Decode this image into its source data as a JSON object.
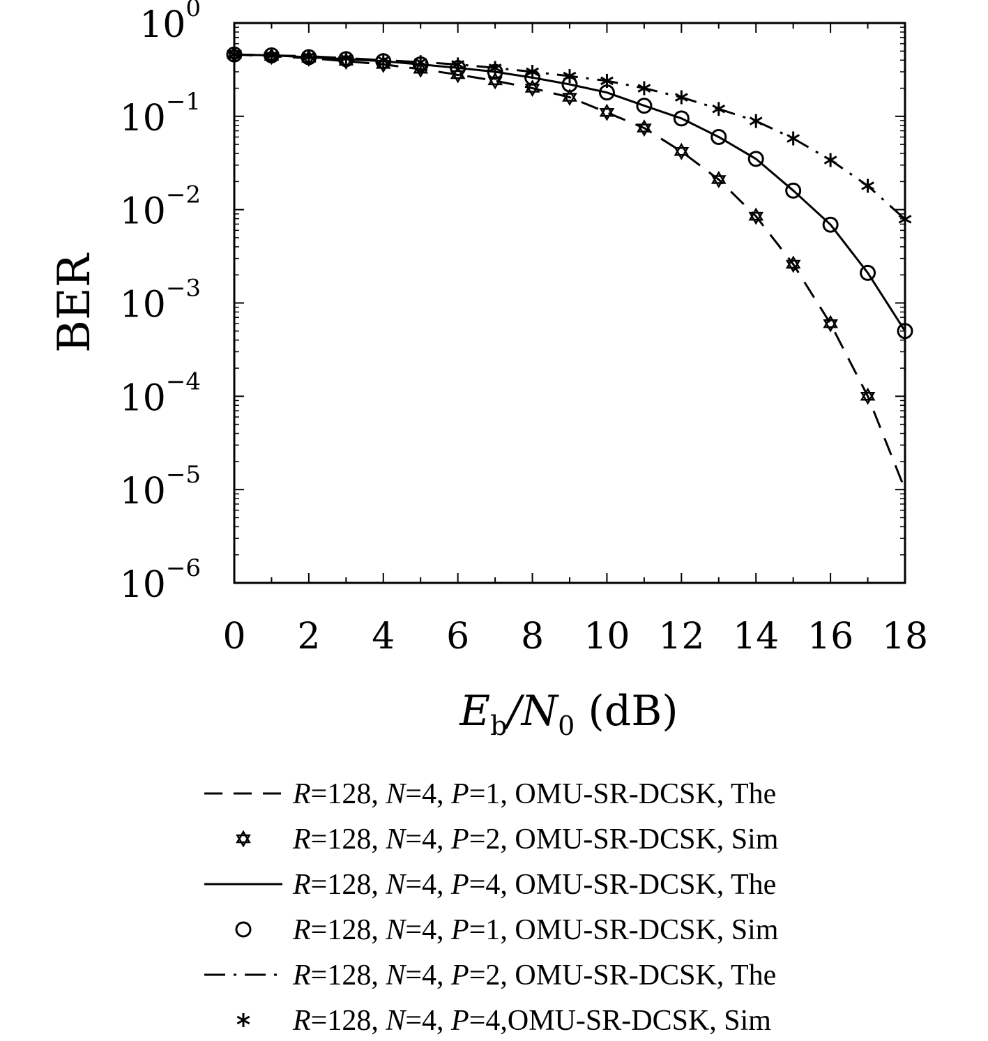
{
  "chart_data": {
    "type": "line",
    "xlabel": {
      "main": "E",
      "sub1": "b",
      "slash": "/N",
      "sub2": "0",
      "unit": " (dB)"
    },
    "ylabel": "BER",
    "xlim": [
      0,
      18
    ],
    "ylim": [
      1e-06,
      1
    ],
    "yscale": "log",
    "grid": false,
    "legend_position": "below",
    "x_ticks": [
      "0",
      "2",
      "4",
      "6",
      "8",
      "10",
      "12",
      "14",
      "16",
      "18"
    ],
    "y_ticks": [
      {
        "base": "10",
        "exp": "0"
      },
      {
        "base": "10",
        "exp": "−1"
      },
      {
        "base": "10",
        "exp": "−2"
      },
      {
        "base": "10",
        "exp": "−3"
      },
      {
        "base": "10",
        "exp": "−4"
      },
      {
        "base": "10",
        "exp": "−5"
      },
      {
        "base": "10",
        "exp": "−6"
      }
    ],
    "series": [
      {
        "name": "R=128, N=4, P=1, OMU-SR-DCSK, The",
        "style": "dashed",
        "marker": "none",
        "x": [
          0,
          1,
          2,
          3,
          4,
          5,
          6,
          7,
          8,
          9,
          10,
          11,
          12,
          13,
          14,
          15,
          16,
          17,
          18
        ],
        "y": [
          0.46,
          0.44,
          0.42,
          0.39,
          0.36,
          0.32,
          0.28,
          0.24,
          0.2,
          0.16,
          0.11,
          0.075,
          0.042,
          0.021,
          0.0085,
          0.0026,
          0.0006,
          0.0001,
          1e-05
        ]
      },
      {
        "name": "R=128, N=4, P=2, OMU-SR-DCSK, Sim",
        "style": "none",
        "marker": "hexagram",
        "x": [
          0,
          1,
          2,
          3,
          4,
          5,
          6,
          7,
          8,
          9,
          10,
          11,
          12,
          13,
          14,
          15,
          16,
          17
        ],
        "y": [
          0.46,
          0.44,
          0.42,
          0.39,
          0.36,
          0.32,
          0.28,
          0.24,
          0.2,
          0.16,
          0.11,
          0.075,
          0.042,
          0.021,
          0.0085,
          0.0026,
          0.0006,
          0.0001
        ]
      },
      {
        "name": "R=128, N=4, P=4, OMU-SR-DCSK, The",
        "style": "solid",
        "marker": "none",
        "x": [
          0,
          1,
          2,
          3,
          4,
          5,
          6,
          7,
          8,
          9,
          10,
          11,
          12,
          13,
          14,
          15,
          16,
          17,
          18
        ],
        "y": [
          0.46,
          0.45,
          0.43,
          0.41,
          0.39,
          0.36,
          0.33,
          0.3,
          0.26,
          0.22,
          0.18,
          0.13,
          0.095,
          0.06,
          0.035,
          0.016,
          0.0069,
          0.0021,
          0.0005
        ]
      },
      {
        "name": "R=128, N=4, P=1, OMU-SR-DCSK, Sim",
        "style": "none",
        "marker": "circle",
        "x": [
          0,
          1,
          2,
          3,
          4,
          5,
          6,
          7,
          8,
          9,
          10,
          11,
          12,
          13,
          14,
          15,
          16,
          17,
          18
        ],
        "y": [
          0.46,
          0.45,
          0.43,
          0.41,
          0.39,
          0.36,
          0.33,
          0.3,
          0.26,
          0.22,
          0.18,
          0.13,
          0.095,
          0.06,
          0.035,
          0.016,
          0.0069,
          0.0021,
          0.0005
        ]
      },
      {
        "name": "R=128, N=4, P=2, OMU-SR-DCSK, The",
        "style": "dashdot",
        "marker": "none",
        "x": [
          0,
          1,
          2,
          3,
          4,
          5,
          6,
          7,
          8,
          9,
          10,
          11,
          12,
          13,
          14,
          15,
          16,
          17,
          18
        ],
        "y": [
          0.46,
          0.45,
          0.44,
          0.42,
          0.4,
          0.38,
          0.36,
          0.33,
          0.3,
          0.27,
          0.24,
          0.2,
          0.16,
          0.12,
          0.089,
          0.058,
          0.034,
          0.018,
          0.0079
        ]
      },
      {
        "name": "R=128, N=4, P=4,OMU-SR-DCSK, Sim",
        "style": "none",
        "marker": "asterisk",
        "x": [
          0,
          1,
          2,
          3,
          4,
          5,
          6,
          7,
          8,
          9,
          10,
          11,
          12,
          13,
          14,
          15,
          16,
          17,
          18
        ],
        "y": [
          0.46,
          0.45,
          0.44,
          0.42,
          0.4,
          0.38,
          0.36,
          0.33,
          0.3,
          0.27,
          0.24,
          0.2,
          0.16,
          0.12,
          0.089,
          0.058,
          0.034,
          0.018,
          0.0079
        ]
      }
    ]
  },
  "legend": {
    "entries": [
      {
        "pre": "R",
        "t1": "=128, ",
        "n": "N",
        "t2": "=4, ",
        "p": "P",
        "t3": "=1, OMU-SR-DCSK, The"
      },
      {
        "pre": "R",
        "t1": "=128, ",
        "n": "N",
        "t2": "=4, ",
        "p": "P",
        "t3": "=2, OMU-SR-DCSK, Sim"
      },
      {
        "pre": "R",
        "t1": "=128, ",
        "n": "N",
        "t2": "=4, ",
        "p": "P",
        "t3": "=4, OMU-SR-DCSK, The"
      },
      {
        "pre": "R",
        "t1": "=128, ",
        "n": "N",
        "t2": "=4, ",
        "p": "P",
        "t3": "=1, OMU-SR-DCSK, Sim"
      },
      {
        "pre": "R",
        "t1": "=128, ",
        "n": "N",
        "t2": "=4, ",
        "p": "P",
        "t3": "=2, OMU-SR-DCSK, The"
      },
      {
        "pre": "R",
        "t1": "=128, ",
        "n": "N",
        "t2": "=4, ",
        "p": "P",
        "t3": "=4,OMU-SR-DCSK, Sim"
      }
    ]
  }
}
